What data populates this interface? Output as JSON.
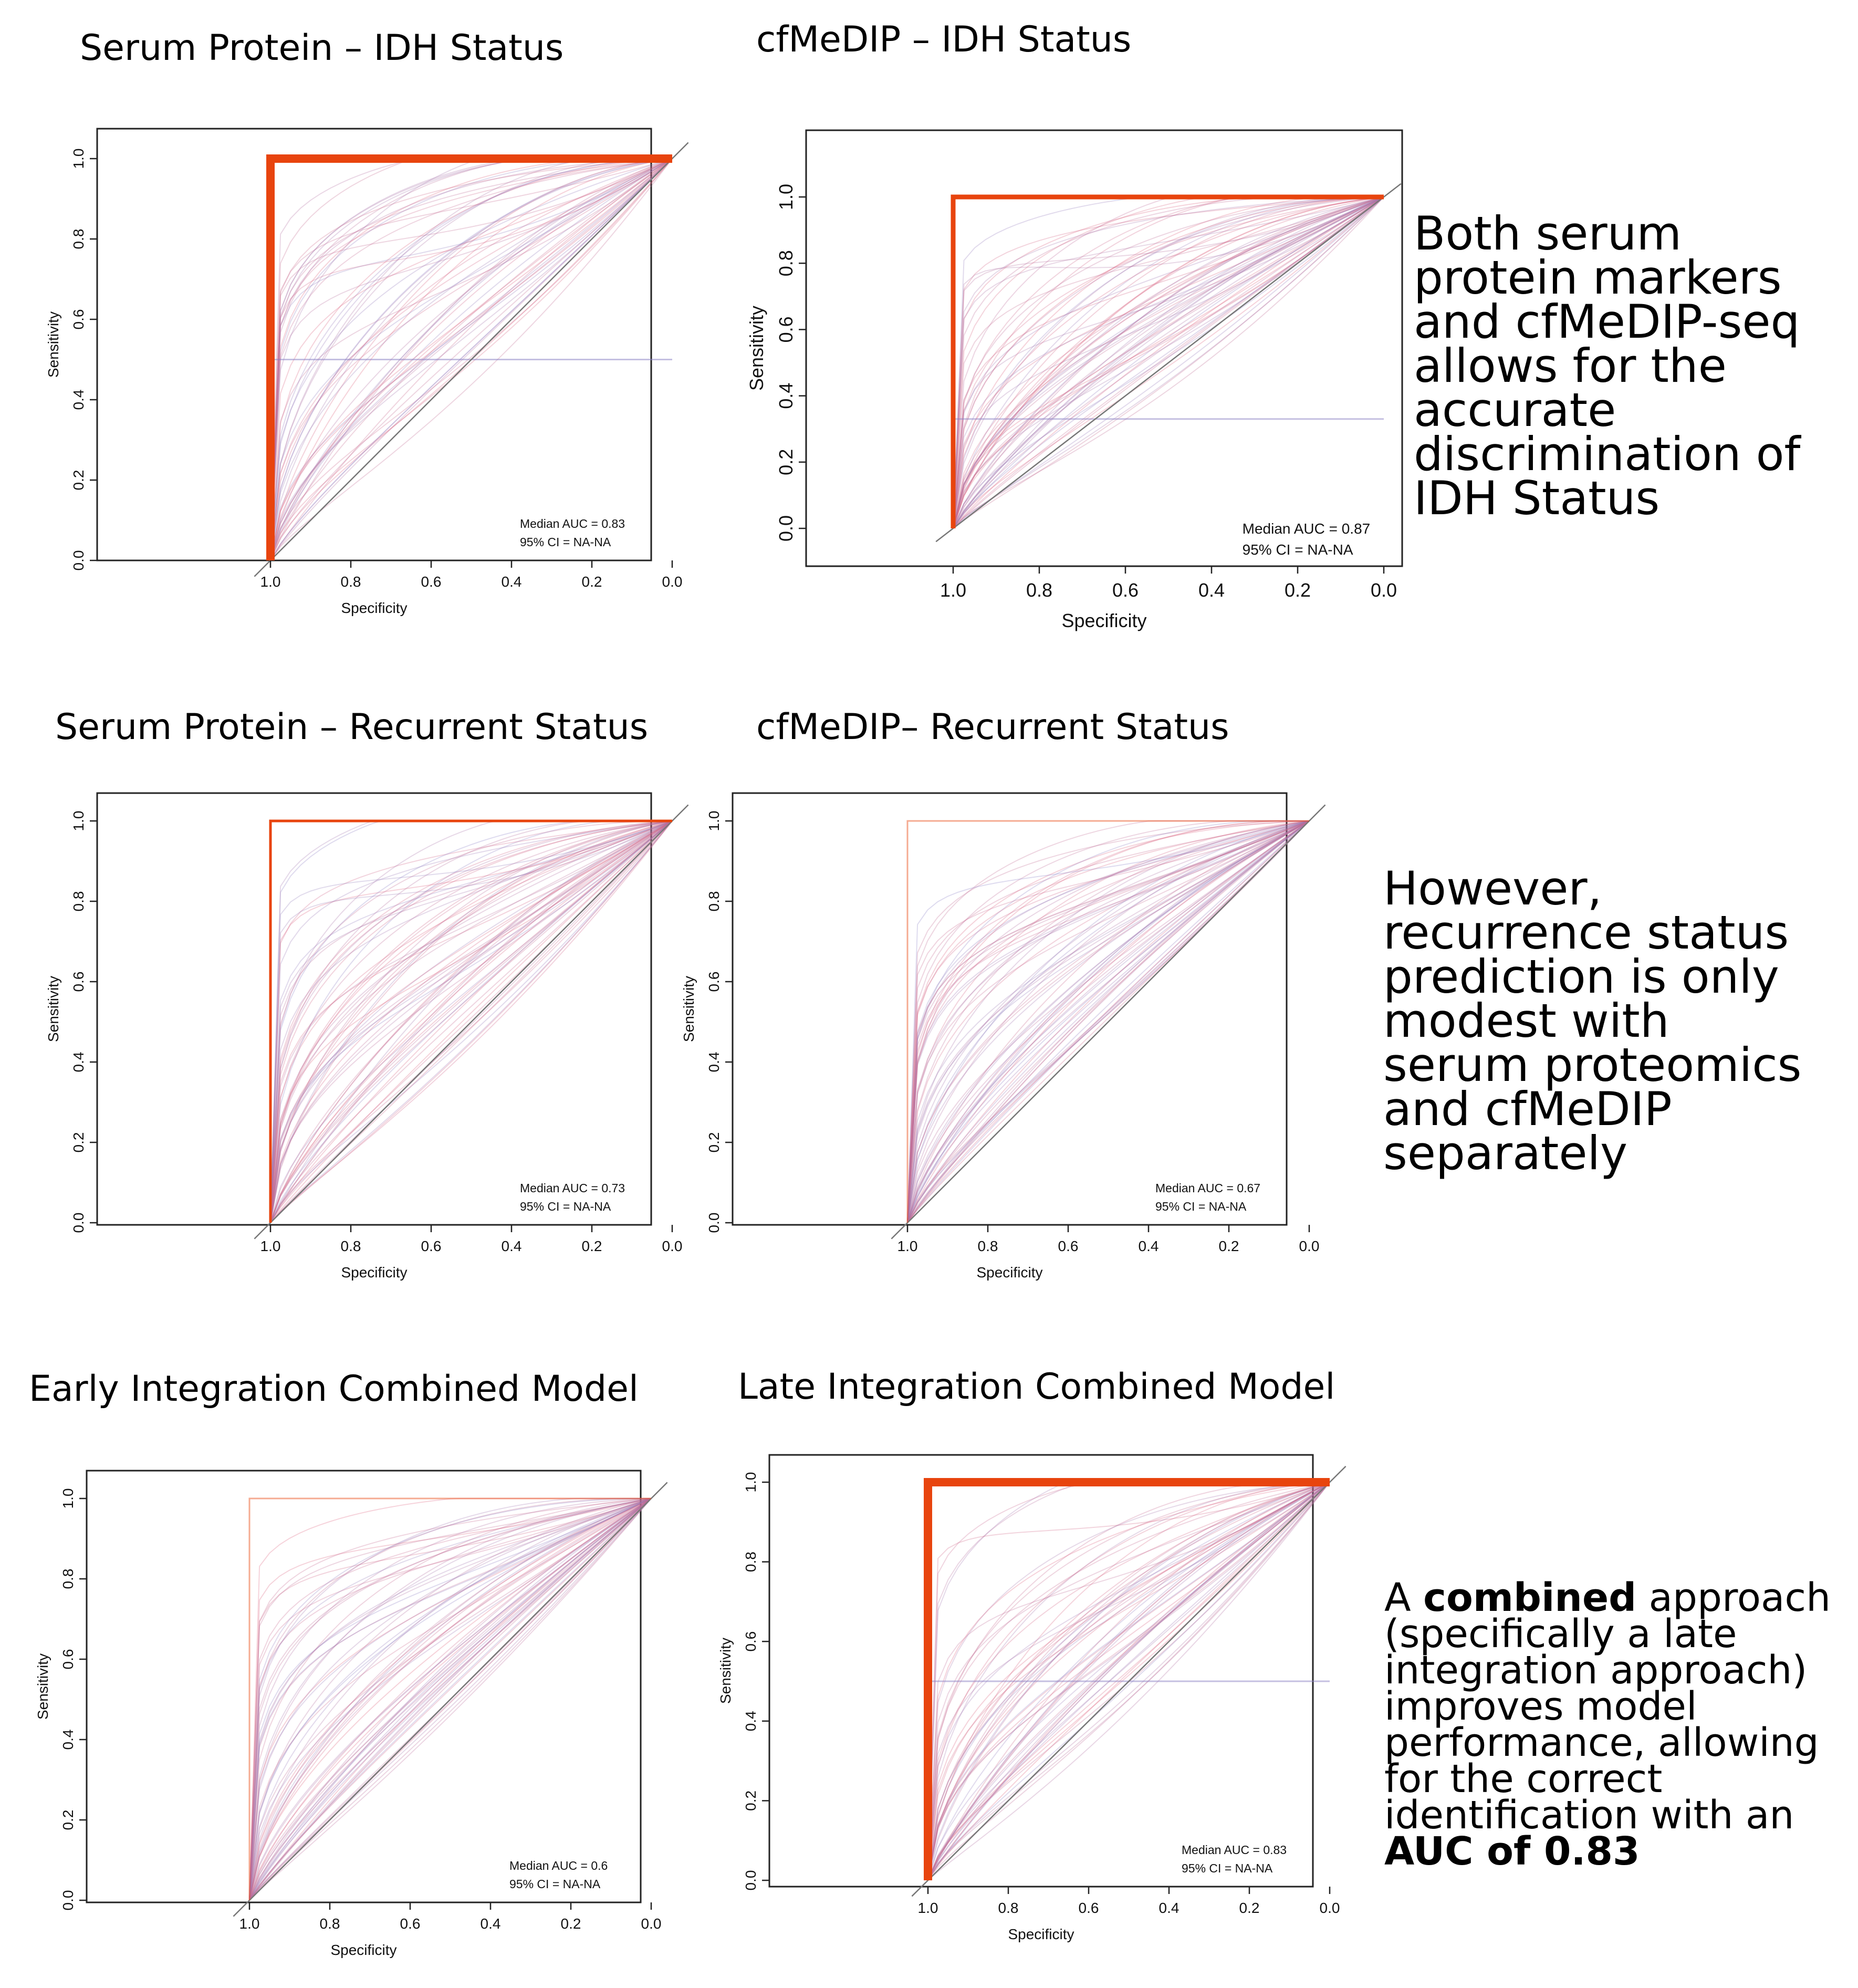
{
  "panels": [
    {
      "title": "Serum Protein – IDH Status"
    },
    {
      "title": "cfMeDIP – IDH Status"
    },
    {
      "title": "Serum Protein – Recurrent Status"
    },
    {
      "title": "cfMeDIP– Recurrent Status"
    },
    {
      "title": "Early Integration Combined Model"
    },
    {
      "title": "Late Integration Combined Model"
    }
  ],
  "side_notes": {
    "idh": "Both serum protein markers and cfMeDIP-seq allows for the accurate discrimination of IDH Status",
    "idh_lines": [
      "Both serum",
      "protein markers",
      "and cfMeDIP-seq",
      "allows for the",
      "accurate",
      "discrimination of",
      "IDH Status"
    ],
    "recurrence": "However, recurrence status prediction is only modest with serum proteomics and cfMeDIP separately",
    "recurrence_lines": [
      "However,",
      "recurrence status",
      "prediction is only",
      "modest with",
      "serum proteomics",
      "and cfMeDIP",
      "separately"
    ],
    "combined": {
      "prefix": "A ",
      "bold1": "combined",
      "mid_line1": " approach",
      "lines": [
        "(specifically a late",
        "integration approach)",
        "improves model",
        "performance, allowing",
        "for the correct",
        "identification with an"
      ],
      "bold2": "AUC of 0.83"
    }
  },
  "colors": {
    "best_curve": "#e8440e",
    "resample_red": "#e0607a",
    "resample_blue": "#8a7fc4",
    "diagonal": "#777777"
  },
  "chart_data": [
    {
      "type": "line",
      "title": "Serum Protein – IDH Status",
      "xlabel": "Specificity",
      "ylabel": "Sensitivity",
      "xlim": [
        1.0,
        0.0
      ],
      "ylim": [
        0.0,
        1.0
      ],
      "xticks": [
        "1.0",
        "0.8",
        "0.6",
        "0.4",
        "0.2",
        "0.0"
      ],
      "yticks": [
        "0.0",
        "0.2",
        "0.4",
        "0.6",
        "0.8",
        "1.0"
      ],
      "median_auc": "Median AUC = 0.83",
      "ci": "95% CI = NA-NA",
      "best_curve": {
        "x": [
          1.0,
          1.0,
          0.0
        ],
        "y": [
          0.0,
          1.0,
          1.0
        ]
      },
      "best_width": "thick",
      "plateau": 0.5,
      "resample_shape": 0.55,
      "n_resamples": 60
    },
    {
      "type": "line",
      "title": "cfMeDIP – IDH Status",
      "xlabel": "Specificity",
      "ylabel": "Sensitivity",
      "xlim": [
        1.0,
        0.0
      ],
      "ylim": [
        0.0,
        1.0
      ],
      "xticks": [
        "1.0",
        "0.8",
        "0.6",
        "0.4",
        "0.2",
        "0.0"
      ],
      "yticks": [
        "0.0",
        "0.2",
        "0.4",
        "0.6",
        "0.8",
        "1.0"
      ],
      "median_auc": "Median AUC = 0.87",
      "ci": "95% CI = NA-NA",
      "best_curve": {
        "x": [
          1.0,
          1.0,
          0.0
        ],
        "y": [
          0.0,
          1.0,
          1.0
        ]
      },
      "best_width": "medium",
      "plateau": 0.33,
      "resample_shape": 0.6,
      "n_resamples": 70
    },
    {
      "type": "line",
      "title": "Serum Protein – Recurrent Status",
      "xlabel": "Specificity",
      "ylabel": "Sensitivity",
      "xlim": [
        1.0,
        0.0
      ],
      "ylim": [
        0.0,
        1.0
      ],
      "xticks": [
        "1.0",
        "0.8",
        "0.6",
        "0.4",
        "0.2",
        "0.0"
      ],
      "yticks": [
        "0.0",
        "0.2",
        "0.4",
        "0.6",
        "0.8",
        "1.0"
      ],
      "median_auc": "Median AUC = 0.73",
      "ci": "95% CI = NA-NA",
      "best_curve": {
        "x": [
          1.0,
          1.0,
          0.0
        ],
        "y": [
          0.0,
          1.0,
          1.0
        ]
      },
      "best_width": "thin",
      "plateau": 0.0,
      "resample_shape": 0.45,
      "n_resamples": 70
    },
    {
      "type": "line",
      "title": "cfMeDIP– Recurrent Status",
      "xlabel": "Specificity",
      "ylabel": "Sensitivity",
      "xlim": [
        1.0,
        0.0
      ],
      "ylim": [
        0.0,
        1.0
      ],
      "xticks": [
        "1.0",
        "0.8",
        "0.6",
        "0.4",
        "0.2",
        "0.0"
      ],
      "yticks": [
        "0.0",
        "0.2",
        "0.4",
        "0.6",
        "0.8",
        "1.0"
      ],
      "median_auc": "Median AUC = 0.67",
      "ci": "95% CI = NA-NA",
      "best_curve": {
        "x": [
          1.0,
          1.0,
          0.0
        ],
        "y": [
          0.0,
          1.0,
          1.0
        ]
      },
      "best_width": "faint",
      "plateau": 0.0,
      "resample_shape": 0.3,
      "n_resamples": 70
    },
    {
      "type": "line",
      "title": "Early Integration Combined Model",
      "xlabel": "Specificity",
      "ylabel": "Sensitivity",
      "xlim": [
        1.0,
        0.0
      ],
      "ylim": [
        0.0,
        1.0
      ],
      "xticks": [
        "1.0",
        "0.8",
        "0.6",
        "0.4",
        "0.2",
        "0.0"
      ],
      "yticks": [
        "0.0",
        "0.2",
        "0.4",
        "0.6",
        "0.8",
        "1.0"
      ],
      "median_auc": "Median AUC = 0.6",
      "ci": "95% CI = NA-NA",
      "best_curve": {
        "x": [
          1.0,
          1.0,
          0.0
        ],
        "y": [
          0.0,
          1.0,
          1.0
        ]
      },
      "best_width": "faint",
      "plateau": 0.0,
      "resample_shape": 0.25,
      "n_resamples": 70
    },
    {
      "type": "line",
      "title": "Late Integration Combined Model",
      "xlabel": "Specificity",
      "ylabel": "Sensitivity",
      "xlim": [
        1.0,
        0.0
      ],
      "ylim": [
        0.0,
        1.0
      ],
      "xticks": [
        "1.0",
        "0.8",
        "0.6",
        "0.4",
        "0.2",
        "0.0"
      ],
      "yticks": [
        "0.0",
        "0.2",
        "0.4",
        "0.6",
        "0.8",
        "1.0"
      ],
      "median_auc": "Median AUC = 0.83",
      "ci": "95% CI = NA-NA",
      "best_curve": {
        "x": [
          1.0,
          1.0,
          0.0
        ],
        "y": [
          0.0,
          1.0,
          1.0
        ]
      },
      "best_width": "thick",
      "plateau": 0.5,
      "resample_shape": 0.5,
      "n_resamples": 60
    }
  ]
}
